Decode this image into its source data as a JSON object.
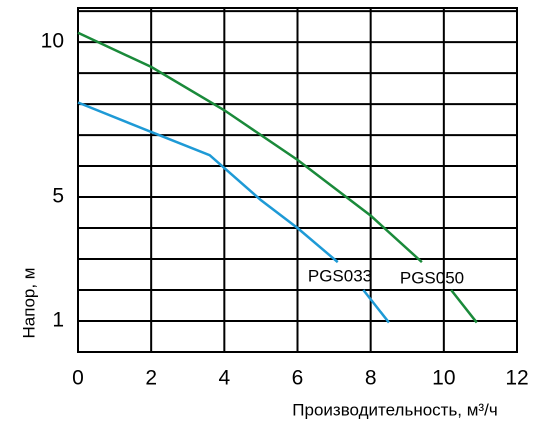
{
  "chart_data": {
    "type": "line",
    "x_label": "Производительность, м³/ч",
    "y_label": "Напор, м",
    "xlim": [
      0,
      12
    ],
    "xticks": [
      0,
      2,
      4,
      6,
      8,
      10,
      12
    ],
    "ylim": [
      0,
      11.1
    ],
    "yticks": [
      1,
      5,
      10
    ],
    "ygrid": [
      1,
      2,
      3,
      4,
      5,
      6,
      7,
      8,
      9,
      10,
      11
    ],
    "grid": true,
    "series": [
      {
        "name": "PGS033",
        "color": "#1e9ad6",
        "x": [
          0,
          2,
          3.6,
          5,
          6,
          7.1,
          7.45,
          7.8,
          8.5
        ],
        "values": [
          8.05,
          7.1,
          6.35,
          4.9,
          4.0,
          2.9,
          null,
          2.0,
          0.95
        ]
      },
      {
        "name": "PGS050",
        "color": "#1a8a3a",
        "x": [
          0,
          2,
          4,
          6,
          8,
          9.4,
          9.8,
          10.2,
          10.9
        ],
        "values": [
          10.3,
          9.2,
          7.8,
          6.2,
          4.4,
          2.9,
          null,
          2.0,
          0.95
        ]
      }
    ]
  }
}
